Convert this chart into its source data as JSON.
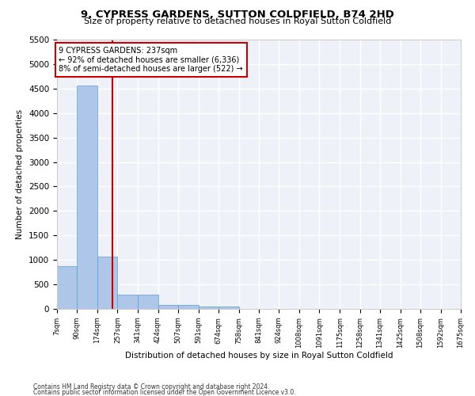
{
  "title": "9, CYPRESS GARDENS, SUTTON COLDFIELD, B74 2HD",
  "subtitle": "Size of property relative to detached houses in Royal Sutton Coldfield",
  "xlabel": "Distribution of detached houses by size in Royal Sutton Coldfield",
  "ylabel": "Number of detached properties",
  "footnote1": "Contains HM Land Registry data © Crown copyright and database right 2024.",
  "footnote2": "Contains public sector information licensed under the Open Government Licence v3.0.",
  "annotation_line1": "9 CYPRESS GARDENS: 237sqm",
  "annotation_line2": "← 92% of detached houses are smaller (6,336)",
  "annotation_line3": "8% of semi-detached houses are larger (522) →",
  "property_size": 237,
  "bin_edges": [
    7,
    90,
    174,
    257,
    341,
    424,
    507,
    591,
    674,
    758,
    841,
    924,
    1008,
    1091,
    1175,
    1258,
    1341,
    1425,
    1508,
    1592,
    1675
  ],
  "bar_heights": [
    870,
    4560,
    1060,
    290,
    290,
    80,
    80,
    55,
    50,
    0,
    0,
    0,
    0,
    0,
    0,
    0,
    0,
    0,
    0,
    0
  ],
  "bar_color": "#aec6e8",
  "bar_edge_color": "#5a9fd4",
  "line_color": "#cc0000",
  "background_color": "#eef2f8",
  "grid_color": "#ffffff",
  "ylim": [
    0,
    5500
  ],
  "yticks": [
    0,
    500,
    1000,
    1500,
    2000,
    2500,
    3000,
    3500,
    4000,
    4500,
    5000,
    5500
  ]
}
